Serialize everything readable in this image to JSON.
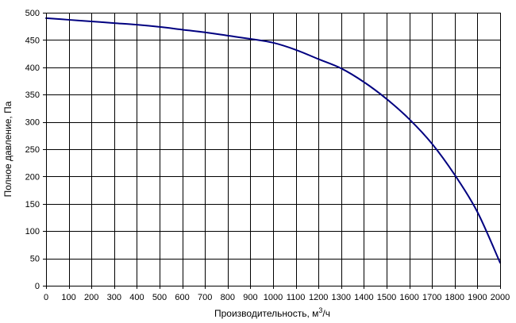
{
  "chart_data": {
    "type": "line",
    "title": "",
    "xlabel": "Производительность, м³/ч",
    "ylabel": "Полное давление, Па",
    "xlim": [
      0,
      2000
    ],
    "ylim": [
      0,
      500
    ],
    "x_ticks": [
      0,
      100,
      200,
      300,
      400,
      500,
      600,
      700,
      800,
      900,
      1000,
      1100,
      1200,
      1300,
      1400,
      1500,
      1600,
      1700,
      1800,
      1900,
      2000
    ],
    "y_ticks": [
      0,
      50,
      100,
      150,
      200,
      250,
      300,
      350,
      400,
      450,
      500
    ],
    "grid": true,
    "legend": "none",
    "line_color": "#000080",
    "grid_color": "#000000",
    "series": [
      {
        "x": [
          0,
          100,
          200,
          300,
          400,
          500,
          600,
          700,
          800,
          900,
          1000,
          1100,
          1200,
          1300,
          1400,
          1500,
          1600,
          1700,
          1800,
          1900,
          2000
        ],
        "y": [
          490,
          487,
          484,
          481,
          478,
          474,
          469,
          464,
          458,
          452,
          445,
          432,
          415,
          398,
          373,
          342,
          305,
          260,
          203,
          135,
          42
        ]
      }
    ]
  }
}
